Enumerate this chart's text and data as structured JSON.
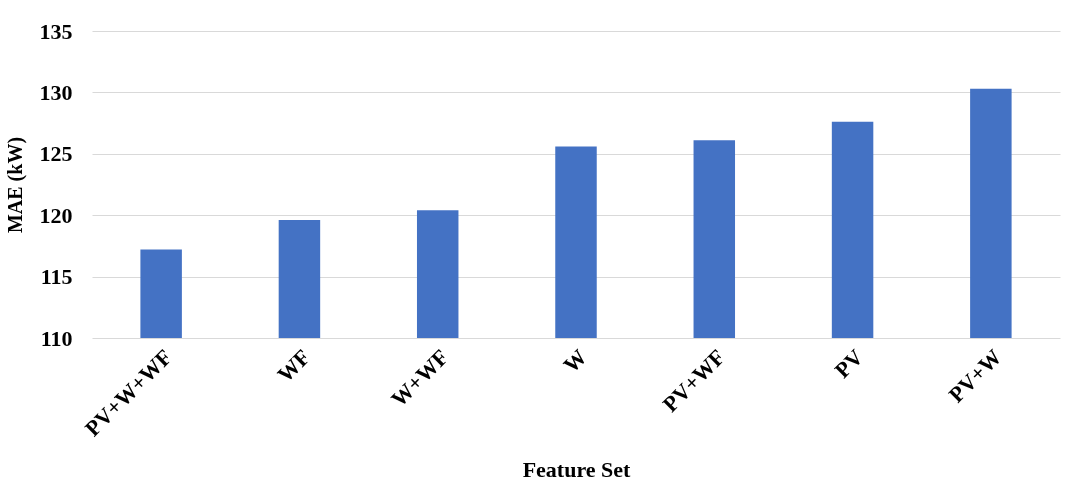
{
  "chart_data": {
    "type": "bar",
    "xlabel": "Feature Set",
    "ylabel": "MAE (kW)",
    "categories": [
      "PV+W+WF",
      "WF",
      "W+WF",
      "W",
      "PV+WF",
      "PV",
      "PV+W"
    ],
    "values": [
      117.2,
      119.6,
      120.4,
      125.6,
      126.1,
      127.6,
      130.3
    ],
    "color": "#4472c4",
    "ylim": [
      110,
      135
    ],
    "yticks": [
      110,
      115,
      120,
      125,
      130,
      135
    ],
    "grid": "y"
  }
}
